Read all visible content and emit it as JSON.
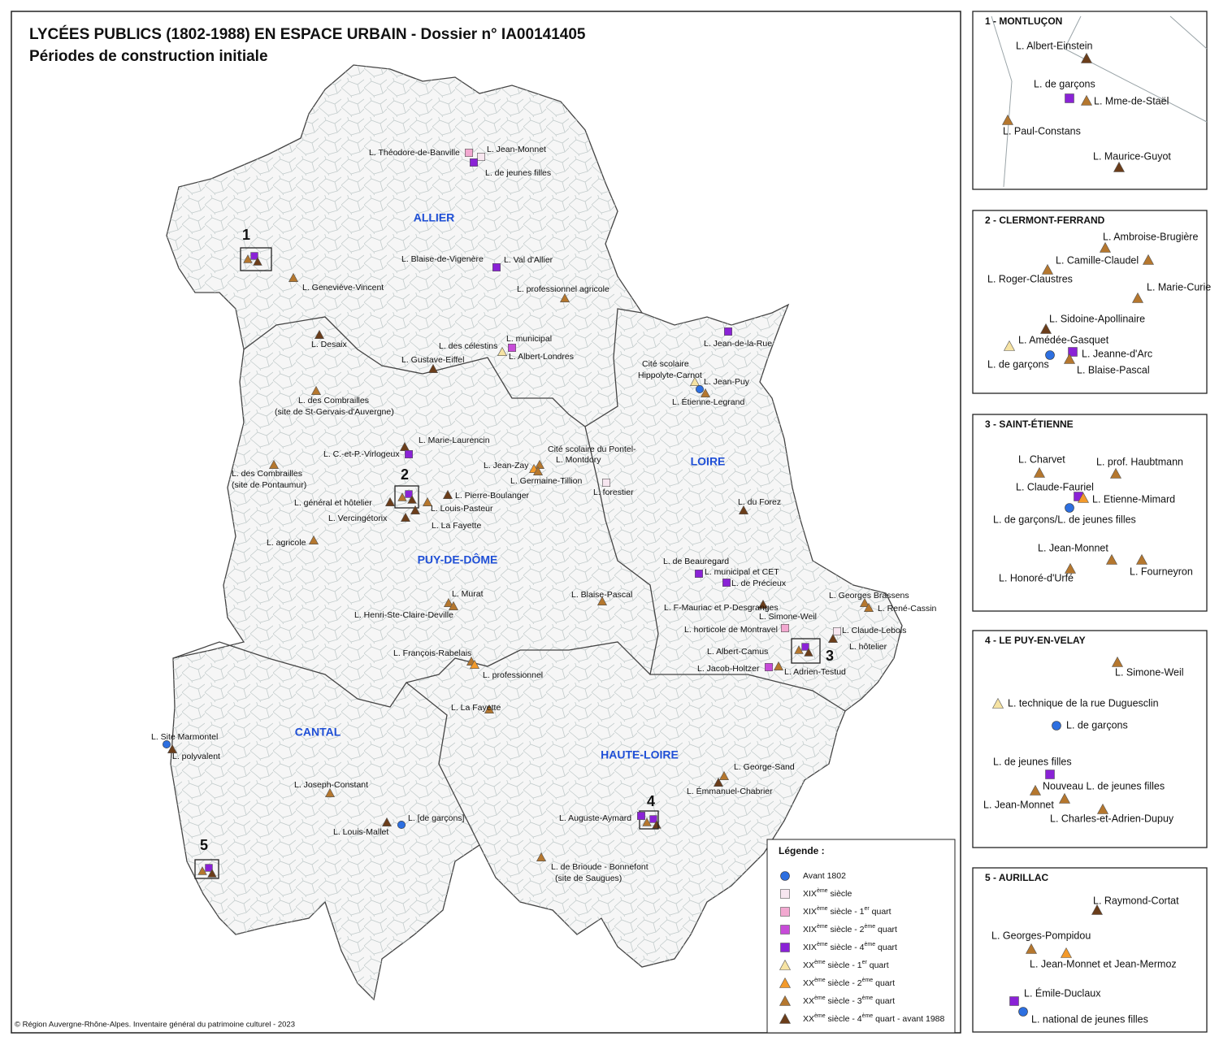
{
  "header": {
    "title": "LYCÉES PUBLICS (1802-1988) EN ESPACE URBAIN - Dossier n° IA00141405",
    "subtitle": "Périodes de construction initiale"
  },
  "map": {
    "departments": [
      "ALLIER",
      "PUY-DE-DÔME",
      "LOIRE",
      "CANTAL",
      "HAUTE-LOIRE"
    ],
    "inset_numbers": [
      "1",
      "2",
      "3",
      "4",
      "5"
    ],
    "labels": [
      "L. Théodore-de-Banville",
      "L. Jean-Monnet",
      "L. de jeunes filles",
      "L. Blaise-de-Vigenère",
      "L. Val d'Allier",
      "L. professionnel agricole",
      "L. Geneviève-Vincent",
      "L. Desaix",
      "L. des célestins",
      "L. municipal",
      "L. Albert-Londres",
      "L. Gustave-Eiffel",
      "L. Jean-de-la-Rue",
      "Cité scolaire",
      "Hippolyte-Carnot",
      "L. Jean-Puy",
      "L. Étienne-Legrand",
      "L. des Combrailles",
      "(site de St-Gervais-d'Auvergne)",
      "L. Marie-Laurencin",
      "L. C.-et-P.-Virlogeux",
      "Cité scolaire du Pontel-",
      "L. Montdory",
      "L. Jean-Zay",
      "L. Germaine-Tillion",
      "L. des Combrailles",
      "(site de Pontaumur)",
      "L. forestier",
      "L. général et hôtelier",
      "L. Pierre-Boulanger",
      "L. Louis-Pasteur",
      "L. Vercingétorix",
      "L. La Fayette",
      "L. du Forez",
      "L. agricole",
      "L. de Beauregard",
      "L. municipal et CET",
      "L. de Précieux",
      "L. Murat",
      "L. Henri-Ste-Claire-Deville",
      "L. Blaise-Pascal",
      "L. F-Mauriac et P-Desgranges",
      "L. Georges Brassens",
      "L. René-Cassin",
      "L. Simone-Weil",
      "L. horticole de Montravel",
      "L. Claude-Lebois",
      "L. hôtelier",
      "L. Albert-Camus",
      "L. Jacob-Holtzer",
      "L. Adrien-Testud",
      "L. François-Rabelais",
      "L. professionnel",
      "L. La Fayette",
      "L. Site Marmontel",
      "L. polyvalent",
      "L. Joseph-Constant",
      "L. [de garçons]",
      "L. Louis-Mallet",
      "L. George-Sand",
      "L. Émmanuel-Chabrier",
      "L. Auguste-Aymard",
      "L. de Brioude - Bonnefont",
      "(site de Saugues)"
    ]
  },
  "legend": {
    "title": "Légende :",
    "items": [
      [
        "Avant 1802"
      ],
      [
        "XIX",
        "ème",
        " siècle"
      ],
      [
        "XIX",
        "ème",
        " siècle - 1",
        "er",
        " quart"
      ],
      [
        "XIX",
        "ème",
        " siècle - 2",
        "ème",
        " quart"
      ],
      [
        "XIX",
        "ème",
        " siècle - 4",
        "ème",
        " quart"
      ],
      [
        "XX",
        "ème",
        " siècle - 1",
        "er",
        " quart"
      ],
      [
        "XX",
        "ème",
        " siècle - 2",
        "ème",
        " quart"
      ],
      [
        "XX",
        "ème",
        " siècle - 3",
        "ème",
        " quart"
      ],
      [
        "XX",
        "ème",
        " siècle - 4",
        "ème",
        " quart - avant 1988"
      ]
    ]
  },
  "insets": [
    {
      "title": "1 - MONTLUÇON",
      "labels": [
        "L. Albert-Einstein",
        "L. de garçons",
        "L. Mme-de-Staël",
        "L. Paul-Constans",
        "L. Maurice-Guyot"
      ]
    },
    {
      "title": "2 - CLERMONT-FERRAND",
      "labels": [
        "L. Ambroise-Brugière",
        "L. Camille-Claudel",
        "L. Roger-Claustres",
        "L. Marie-Curie",
        "L. Sidoine-Apollinaire",
        "L. Amédée-Gasquet",
        "L. Jeanne-d'Arc",
        "L. de garçons",
        "L. Blaise-Pascal"
      ]
    },
    {
      "title": "3 - SAINT-ÉTIENNE",
      "labels": [
        "L. Charvet",
        "L. prof. Haubtmann",
        "L. Claude-Fauriel",
        "L. Etienne-Mimard",
        "L. de garçons/L. de jeunes filles",
        "L. Jean-Monnet",
        "L. Honoré-d'Urfé",
        "L. Fourneyron"
      ]
    },
    {
      "title": "4 - LE PUY-EN-VELAY",
      "labels": [
        "L. Simone-Weil",
        "L. technique de la rue Duguesclin",
        "L. de garçons",
        "L. de jeunes filles",
        "Nouveau L. de jeunes filles",
        "L. Jean-Monnet",
        "L. Charles-et-Adrien-Dupuy"
      ]
    },
    {
      "title": "5 - AURILLAC",
      "labels": [
        "L. Raymond-Cortat",
        "L. Georges-Pompidou",
        "L. Jean-Monnet et Jean-Mermoz",
        "L. Émile-Duclaux",
        "L. national de jeunes filles"
      ]
    }
  ],
  "credit": "© Région Auvergne-Rhône-Alpes. Inventaire général du patrimoine culturel - 2023"
}
